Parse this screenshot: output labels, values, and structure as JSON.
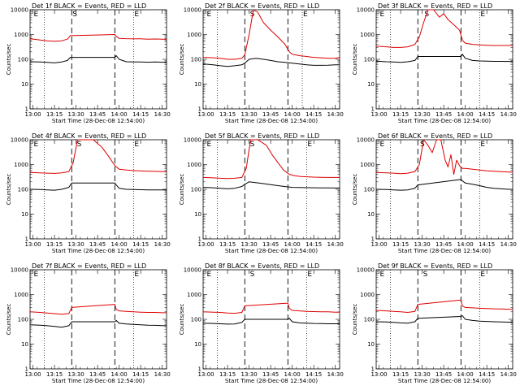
{
  "chart_data": {
    "type": "line",
    "grid_layout": "3x3",
    "y_scale": "log",
    "ylim": [
      1,
      10000
    ],
    "x_range": [
      "12:58",
      "14:33"
    ],
    "y_ticks": [
      "1",
      "10",
      "100",
      "1000",
      "10000"
    ],
    "x_ticks": [
      "13:00",
      "13:15",
      "13:30",
      "13:45",
      "14:00",
      "14:15",
      "14:30"
    ],
    "xlabel": "Start Time (28-Dec-08 12:54:00)",
    "ylabel": "Counts/sec",
    "series_colors": {
      "events": "#000000",
      "lld": "#dd0000"
    },
    "panels": [
      {
        "title": "Det 1f BLACK = Events, RED = LLD",
        "markers": {
          "E1": "E",
          "S": "S",
          "E2": "E"
        },
        "marker_times": {
          "E1": "13:00",
          "S": "13:27",
          "E2": "14:10"
        },
        "vlines": {
          "dotted": [
            "13:08",
            "14:10"
          ],
          "dashed": [
            "13:27",
            "13:57"
          ]
        },
        "events": {
          "x": [
            "12:58",
            "13:05",
            "13:10",
            "13:15",
            "13:20",
            "13:24",
            "13:26",
            "13:57",
            "13:58",
            "14:00",
            "14:05",
            "14:10",
            "14:15",
            "14:20",
            "14:25",
            "14:30",
            "14:33"
          ],
          "y": [
            80,
            78,
            75,
            72,
            78,
            90,
            120,
            120,
            140,
            100,
            80,
            78,
            78,
            76,
            78,
            76,
            76
          ]
        },
        "lld": {
          "x": [
            "12:58",
            "13:05",
            "13:10",
            "13:15",
            "13:20",
            "13:24",
            "13:26",
            "13:57",
            "13:58",
            "14:00",
            "14:05",
            "14:10",
            "14:15",
            "14:20",
            "14:25",
            "14:30",
            "14:33"
          ],
          "y": [
            680,
            600,
            560,
            540,
            560,
            650,
            900,
            1000,
            850,
            700,
            680,
            670,
            670,
            650,
            660,
            650,
            640
          ]
        }
      },
      {
        "title": "Det 2f BLACK = Events, RED = LLD",
        "markers": {
          "E1": "E",
          "S": "S",
          "E2": "E"
        },
        "marker_times": {
          "E1": "13:00",
          "S": "13:30",
          "E2": "14:07"
        },
        "vlines": {
          "dotted": [
            "13:08",
            "14:07"
          ],
          "dashed": [
            "13:27",
            "13:57"
          ]
        },
        "events": {
          "x": [
            "12:58",
            "13:05",
            "13:10",
            "13:15",
            "13:20",
            "13:25",
            "13:27",
            "13:30",
            "13:35",
            "13:40",
            "13:45",
            "13:50",
            "13:55",
            "14:00",
            "14:05",
            "14:10",
            "14:15",
            "14:20",
            "14:25",
            "14:30",
            "14:33"
          ],
          "y": [
            65,
            60,
            55,
            52,
            55,
            60,
            70,
            100,
            110,
            100,
            90,
            80,
            75,
            70,
            65,
            60,
            57,
            57,
            58,
            60,
            60
          ]
        },
        "lld": {
          "x": [
            "12:58",
            "13:05",
            "13:10",
            "13:15",
            "13:20",
            "13:25",
            "13:27",
            "13:30",
            "13:33",
            "13:36",
            "13:40",
            "13:45",
            "13:50",
            "13:55",
            "13:58",
            "14:00",
            "14:05",
            "14:10",
            "14:15",
            "14:20",
            "14:25",
            "14:30",
            "14:33"
          ],
          "y": [
            120,
            115,
            110,
            100,
            100,
            110,
            150,
            1000,
            10000,
            8000,
            3000,
            1500,
            800,
            400,
            200,
            160,
            140,
            130,
            120,
            115,
            110,
            110,
            120
          ]
        }
      },
      {
        "title": "Det 3f BLACK = Events, RED = LLD",
        "markers": {
          "E1": "E",
          "S": "S",
          "E2": "E"
        },
        "marker_times": {
          "E1": "13:00",
          "S": "13:31",
          "E2": "14:10"
        },
        "vlines": {
          "dotted": [
            "13:08",
            "14:10"
          ],
          "dashed": [
            "13:27",
            "13:57"
          ]
        },
        "events": {
          "x": [
            "12:58",
            "13:05",
            "13:10",
            "13:15",
            "13:20",
            "13:25",
            "13:27",
            "13:57",
            "13:58",
            "14:00",
            "14:05",
            "14:10",
            "14:15",
            "14:20",
            "14:25",
            "14:30",
            "14:33"
          ],
          "y": [
            85,
            80,
            78,
            75,
            80,
            90,
            130,
            130,
            160,
            110,
            90,
            86,
            85,
            83,
            83,
            82,
            82
          ]
        },
        "lld": {
          "x": [
            "12:58",
            "13:05",
            "13:10",
            "13:15",
            "13:20",
            "13:25",
            "13:28",
            "13:31",
            "13:34",
            "13:38",
            "13:42",
            "13:45",
            "13:48",
            "13:52",
            "13:56",
            "13:58",
            "14:00",
            "14:05",
            "14:10",
            "14:15",
            "14:20",
            "14:25",
            "14:30",
            "14:33"
          ],
          "y": [
            340,
            320,
            300,
            300,
            320,
            400,
            800,
            3000,
            10000,
            10000,
            5000,
            7000,
            4000,
            2500,
            1500,
            600,
            450,
            400,
            380,
            370,
            360,
            360,
            360,
            360
          ]
        }
      },
      {
        "title": "Det 4f BLACK = Events, RED = LLD",
        "markers": {
          "E1": "E",
          "S": "S",
          "E2": "E"
        },
        "marker_times": {
          "E1": "13:00",
          "S": "13:30",
          "E2": "14:10"
        },
        "vlines": {
          "dotted": [
            "13:08",
            "14:10"
          ],
          "dashed": [
            "13:27",
            "13:57"
          ]
        },
        "events": {
          "x": [
            "12:58",
            "13:05",
            "13:10",
            "13:15",
            "13:20",
            "13:25",
            "13:27",
            "13:57",
            "13:58",
            "14:00",
            "14:05",
            "14:10",
            "14:15",
            "14:20",
            "14:25",
            "14:30",
            "14:33"
          ],
          "y": [
            100,
            98,
            95,
            92,
            100,
            120,
            180,
            180,
            150,
            110,
            100,
            98,
            96,
            95,
            95,
            95,
            95
          ]
        },
        "lld": {
          "x": [
            "12:58",
            "13:05",
            "13:10",
            "13:15",
            "13:20",
            "13:25",
            "13:28",
            "13:31",
            "13:36",
            "13:42",
            "13:48",
            "13:53",
            "13:57",
            "14:00",
            "14:05",
            "14:10",
            "14:15",
            "14:20",
            "14:25",
            "14:30",
            "14:33"
          ],
          "y": [
            480,
            460,
            450,
            440,
            460,
            520,
            1200,
            10000,
            10000,
            10000,
            5000,
            2000,
            900,
            650,
            600,
            570,
            550,
            540,
            530,
            520,
            520
          ]
        }
      },
      {
        "title": "Det 5f BLACK = Events, RED = LLD",
        "markers": {
          "E1": "E",
          "S": "S",
          "E2": "E"
        },
        "marker_times": {
          "E1": "13:00",
          "S": "13:30",
          "E2": "14:10"
        },
        "vlines": {
          "dotted": [
            "13:08",
            "14:10"
          ],
          "dashed": [
            "13:27",
            "13:57"
          ]
        },
        "events": {
          "x": [
            "12:58",
            "13:05",
            "13:10",
            "13:15",
            "13:20",
            "13:25",
            "13:27",
            "13:30",
            "13:40",
            "13:50",
            "13:57",
            "14:00",
            "14:05",
            "14:10",
            "14:15",
            "14:20",
            "14:25",
            "14:30",
            "14:33"
          ],
          "y": [
            120,
            115,
            110,
            105,
            110,
            130,
            160,
            200,
            170,
            140,
            125,
            120,
            118,
            116,
            115,
            114,
            114,
            113,
            113
          ]
        },
        "lld": {
          "x": [
            "12:58",
            "13:05",
            "13:10",
            "13:15",
            "13:20",
            "13:25",
            "13:28",
            "13:31",
            "13:36",
            "13:42",
            "13:46",
            "13:50",
            "13:54",
            "13:58",
            "14:02",
            "14:06",
            "14:10",
            "14:15",
            "14:20",
            "14:25",
            "14:30",
            "14:33"
          ],
          "y": [
            300,
            290,
            280,
            270,
            280,
            300,
            700,
            10000,
            10000,
            6000,
            2500,
            1200,
            600,
            400,
            350,
            330,
            320,
            310,
            305,
            300,
            300,
            300
          ]
        }
      },
      {
        "title": "Det 6f BLACK = Events, RED = LLD",
        "markers": {
          "E1": "E",
          "S": "S",
          "E2": "E"
        },
        "marker_times": {
          "E1": "13:00",
          "S": "13:28",
          "E2": "14:10"
        },
        "vlines": {
          "dotted": [
            "13:08",
            "14:10"
          ],
          "dashed": [
            "13:27",
            "13:57"
          ]
        },
        "events": {
          "x": [
            "12:58",
            "13:05",
            "13:10",
            "13:15",
            "13:20",
            "13:25",
            "13:27",
            "13:57",
            "13:58",
            "14:00",
            "14:05",
            "14:10",
            "14:15",
            "14:20",
            "14:25",
            "14:30",
            "14:33"
          ],
          "y": [
            100,
            98,
            95,
            92,
            95,
            110,
            150,
            250,
            220,
            180,
            160,
            140,
            120,
            110,
            105,
            100,
            100
          ]
        },
        "lld": {
          "x": [
            "12:58",
            "13:05",
            "13:10",
            "13:15",
            "13:20",
            "13:25",
            "13:28",
            "13:31",
            "13:34",
            "13:37",
            "13:40",
            "13:43",
            "13:46",
            "13:48",
            "13:50",
            "13:52",
            "13:54",
            "13:56",
            "13:58",
            "14:00",
            "14:05",
            "14:10",
            "14:15",
            "14:20",
            "14:25",
            "14:30",
            "14:33"
          ],
          "y": [
            480,
            460,
            450,
            430,
            450,
            520,
            1000,
            10000,
            6000,
            3000,
            10000,
            10000,
            1500,
            800,
            2500,
            400,
            1500,
            900,
            700,
            700,
            650,
            600,
            560,
            540,
            520,
            500,
            490
          ]
        }
      },
      {
        "title": "Det 7f BLACK = Events, RED = LLD",
        "markers": {
          "E1": "E",
          "S": "",
          "E2": "E"
        },
        "marker_times": {
          "E1": "13:00",
          "S": "13:30",
          "E2": "14:10"
        },
        "vlines": {
          "dotted": [
            "13:08",
            "14:10"
          ],
          "dashed": [
            "13:27",
            "13:57"
          ]
        },
        "events": {
          "x": [
            "12:58",
            "13:05",
            "13:10",
            "13:15",
            "13:20",
            "13:25",
            "13:27",
            "13:57",
            "13:58",
            "14:00",
            "14:05",
            "14:10",
            "14:15",
            "14:20",
            "14:25",
            "14:30",
            "14:33"
          ],
          "y": [
            60,
            58,
            55,
            52,
            48,
            55,
            80,
            80,
            90,
            70,
            65,
            62,
            60,
            58,
            57,
            56,
            55
          ]
        },
        "lld": {
          "x": [
            "12:58",
            "13:05",
            "13:10",
            "13:15",
            "13:20",
            "13:25",
            "13:27",
            "13:57",
            "13:58",
            "14:00",
            "14:05",
            "14:10",
            "14:15",
            "14:20",
            "14:25",
            "14:30",
            "14:33"
          ],
          "y": [
            200,
            190,
            180,
            170,
            160,
            170,
            300,
            400,
            250,
            220,
            210,
            200,
            195,
            190,
            190,
            185,
            185
          ]
        }
      },
      {
        "title": "Det 8f BLACK = Events, RED = LLD",
        "markers": {
          "E1": "E",
          "S": "S",
          "E2": "E"
        },
        "marker_times": {
          "E1": "13:00",
          "S": "13:30",
          "E2": "14:10"
        },
        "vlines": {
          "dotted": [
            "13:08",
            "14:10"
          ],
          "dashed": [
            "13:27",
            "13:57"
          ]
        },
        "events": {
          "x": [
            "12:58",
            "13:05",
            "13:10",
            "13:15",
            "13:20",
            "13:25",
            "13:27",
            "13:57",
            "13:58",
            "14:00",
            "14:05",
            "14:10",
            "14:15",
            "14:20",
            "14:25",
            "14:30",
            "14:33"
          ],
          "y": [
            70,
            68,
            66,
            64,
            65,
            75,
            100,
            100,
            110,
            80,
            72,
            70,
            68,
            67,
            66,
            66,
            66
          ]
        },
        "lld": {
          "x": [
            "12:58",
            "13:05",
            "13:10",
            "13:15",
            "13:20",
            "13:25",
            "13:27",
            "13:57",
            "13:58",
            "14:00",
            "14:05",
            "14:10",
            "14:15",
            "14:20",
            "14:25",
            "14:30",
            "14:33"
          ],
          "y": [
            200,
            195,
            190,
            180,
            175,
            190,
            350,
            450,
            280,
            230,
            220,
            210,
            205,
            200,
            200,
            195,
            195
          ]
        }
      },
      {
        "title": "Det 9f BLACK = Events, RED = LLD",
        "markers": {
          "E1": "E",
          "S": "S",
          "E2": "E"
        },
        "marker_times": {
          "E1": "13:00",
          "S": "13:30",
          "E2": "14:10"
        },
        "vlines": {
          "dotted": [
            "13:08",
            "14:10"
          ],
          "dashed": [
            "13:27",
            "13:57"
          ]
        },
        "events": {
          "x": [
            "12:58",
            "13:05",
            "13:10",
            "13:15",
            "13:20",
            "13:25",
            "13:27",
            "13:57",
            "13:58",
            "14:00",
            "14:05",
            "14:10",
            "14:15",
            "14:20",
            "14:25",
            "14:30",
            "14:33"
          ],
          "y": [
            80,
            78,
            75,
            72,
            70,
            80,
            110,
            130,
            140,
            100,
            90,
            85,
            82,
            80,
            78,
            77,
            76
          ]
        },
        "lld": {
          "x": [
            "12:58",
            "13:05",
            "13:10",
            "13:15",
            "13:20",
            "13:25",
            "13:27",
            "13:57",
            "13:58",
            "14:00",
            "14:05",
            "14:10",
            "14:15",
            "14:20",
            "14:25",
            "14:30",
            "14:33"
          ],
          "y": [
            230,
            220,
            210,
            200,
            190,
            210,
            400,
            600,
            350,
            300,
            290,
            280,
            270,
            265,
            260,
            255,
            255
          ]
        }
      }
    ]
  }
}
